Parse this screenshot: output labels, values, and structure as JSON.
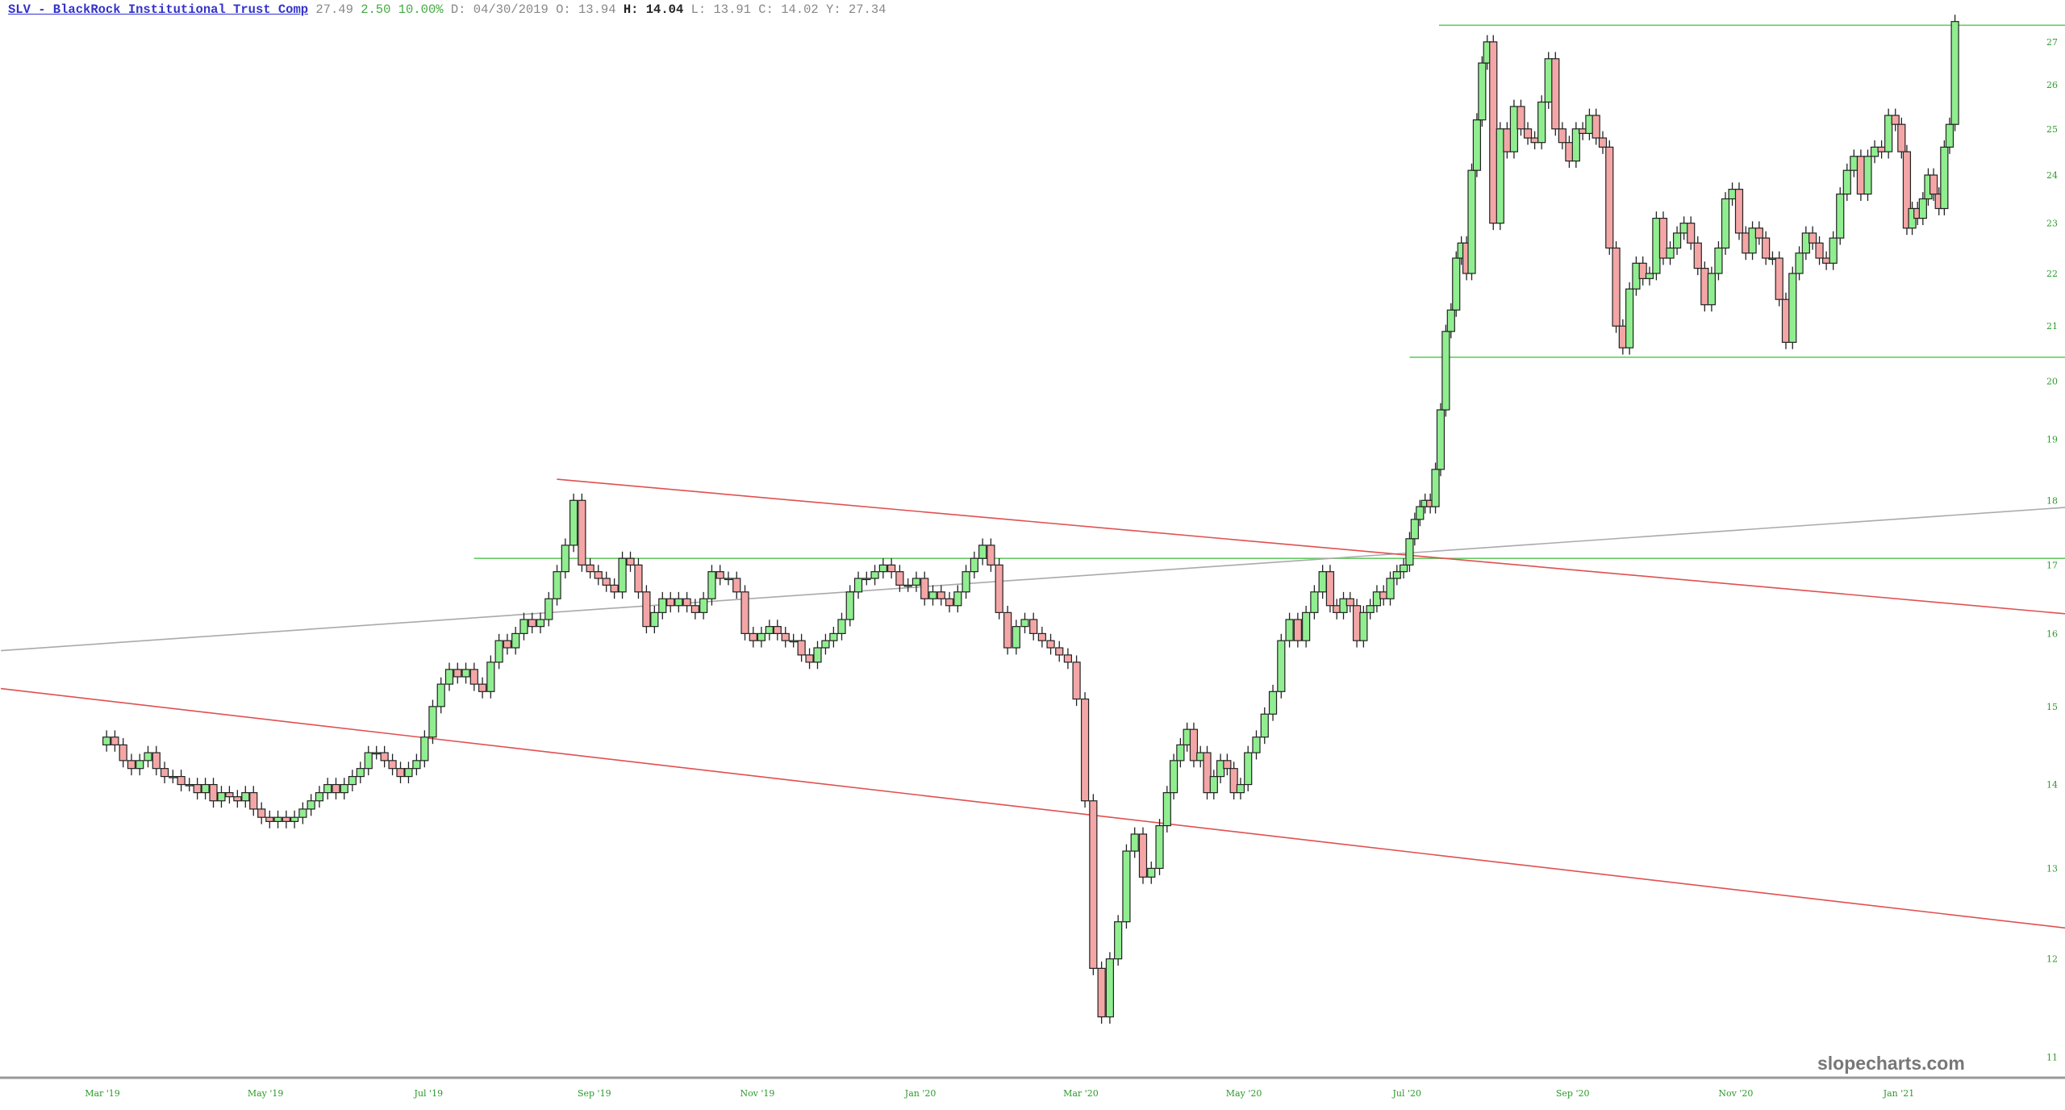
{
  "header": {
    "symbol_link": "SLV - BlackRock Institutional Trust Comp",
    "last": "27.49",
    "change": "2.50",
    "change_pct": "10.00%",
    "date": "D: 04/30/2019",
    "open": "O: 13.94",
    "high": "H: 14.04",
    "low": "L: 13.91",
    "close": "C: 14.02",
    "y_value": "Y: 27.34"
  },
  "watermark": "slopecharts.com",
  "colors": {
    "up": "#90ee90",
    "down": "#f4a6a6",
    "outline": "#222222",
    "axis_text": "#2a9a2a",
    "support_line": "#66cc66",
    "channel_line": "#e05050",
    "trend_line": "#aaaaaa"
  },
  "chart_data": {
    "type": "candlestick",
    "y_scale": "log",
    "ylim": [
      10.9,
      27.6
    ],
    "y_ticks": [
      "11",
      "12",
      "13",
      "14",
      "15",
      "16",
      "17",
      "18",
      "19",
      "20",
      "21",
      "22",
      "23",
      "24",
      "25",
      "26",
      "27"
    ],
    "x_ticks": [
      {
        "label": "Mar '19",
        "date": "2019-03-01"
      },
      {
        "label": "May '19",
        "date": "2019-05-01"
      },
      {
        "label": "Jul '19",
        "date": "2019-07-01"
      },
      {
        "label": "Sep '19",
        "date": "2019-09-01"
      },
      {
        "label": "Nov '19",
        "date": "2019-11-01"
      },
      {
        "label": "Jan '20",
        "date": "2020-01-01"
      },
      {
        "label": "Mar '20",
        "date": "2020-03-01"
      },
      {
        "label": "May '20",
        "date": "2020-05-01"
      },
      {
        "label": "Jul '20",
        "date": "2020-07-01"
      },
      {
        "label": "Sep '20",
        "date": "2020-09-01"
      },
      {
        "label": "Nov '20",
        "date": "2020-11-01"
      },
      {
        "label": "Jan '21",
        "date": "2021-01-01"
      }
    ],
    "first_open": 14.5,
    "monthly_closes": [
      {
        "month": "2019-03",
        "closes": [
          14.6,
          14.5,
          14.3,
          14.2,
          14.3,
          14.4,
          14.2,
          14.1,
          14.1,
          14.0
        ]
      },
      {
        "month": "2019-04",
        "closes": [
          14.0,
          13.9,
          14.0,
          13.8,
          13.9,
          13.85,
          13.8,
          13.9,
          13.7,
          13.6
        ]
      },
      {
        "month": "2019-05",
        "closes": [
          13.55,
          13.6,
          13.55,
          13.6,
          13.7,
          13.8,
          13.9,
          14.0,
          13.9,
          14.0
        ]
      },
      {
        "month": "2019-06",
        "closes": [
          14.1,
          14.2,
          14.4,
          14.4,
          14.3,
          14.2,
          14.1,
          14.2,
          14.3,
          14.6
        ]
      },
      {
        "month": "2019-07",
        "closes": [
          15.0,
          15.3,
          15.5,
          15.4,
          15.5,
          15.3,
          15.2,
          15.6,
          15.9,
          15.8
        ]
      },
      {
        "month": "2019-08",
        "closes": [
          16.0,
          16.2,
          16.1,
          16.2,
          16.5,
          16.9,
          17.3,
          18.0,
          17.0,
          16.9
        ]
      },
      {
        "month": "2019-09",
        "closes": [
          16.8,
          16.7,
          16.6,
          17.1,
          17.0,
          16.6,
          16.1,
          16.3,
          16.5,
          16.4
        ]
      },
      {
        "month": "2019-10",
        "closes": [
          16.5,
          16.4,
          16.3,
          16.5,
          16.9,
          16.8,
          16.8,
          16.6,
          16.0,
          15.9
        ]
      },
      {
        "month": "2019-11",
        "closes": [
          16.0,
          16.1,
          16.0,
          15.9,
          15.9,
          15.7,
          15.6,
          15.8,
          15.9,
          16.0
        ]
      },
      {
        "month": "2019-12",
        "closes": [
          16.2,
          16.6,
          16.8,
          16.8,
          16.9,
          17.0,
          16.9,
          16.7,
          16.7,
          16.8
        ]
      },
      {
        "month": "2020-01",
        "closes": [
          16.5,
          16.6,
          16.5,
          16.4,
          16.6,
          16.9,
          17.1,
          17.3,
          17.0,
          16.3
        ]
      },
      {
        "month": "2020-02",
        "closes": [
          15.8,
          16.1,
          16.2,
          16.0,
          15.9,
          15.8,
          15.7,
          15.6,
          15.1
        ]
      },
      {
        "month": "2020-03",
        "closes": [
          13.8,
          11.9,
          11.4,
          12.0,
          12.4,
          13.2,
          13.4,
          12.9,
          13.0,
          13.5
        ]
      },
      {
        "month": "2020-04",
        "closes": [
          13.9,
          14.3,
          14.5,
          14.7,
          14.3,
          14.4,
          13.9,
          14.1,
          14.3,
          14.2,
          13.9,
          14.0
        ]
      },
      {
        "month": "2020-05",
        "closes": [
          14.4,
          14.6,
          14.9,
          15.2,
          15.9,
          16.2,
          15.9,
          16.3,
          16.6,
          16.9
        ]
      },
      {
        "month": "2020-06",
        "closes": [
          16.4,
          16.3,
          16.5,
          16.4,
          15.9,
          16.3,
          16.4,
          16.6,
          16.5,
          16.8,
          16.9,
          17.0
        ]
      },
      {
        "month": "2020-07",
        "closes": [
          17.4,
          17.7,
          17.9,
          18.0,
          17.9,
          18.5,
          19.5,
          20.9,
          21.3,
          22.3,
          22.6,
          22.0,
          24.1,
          25.2,
          26.5,
          27.0
        ]
      },
      {
        "month": "2020-08",
        "closes": [
          23.0,
          25.0,
          24.5,
          25.5,
          25.0,
          24.8,
          24.7,
          25.6,
          26.6,
          25.0,
          24.7,
          24.3
        ]
      },
      {
        "month": "2020-09",
        "closes": [
          25.0,
          24.9,
          25.3,
          24.8,
          24.6,
          22.5,
          21.0,
          20.6,
          21.7,
          22.2,
          21.9,
          22.0
        ]
      },
      {
        "month": "2020-10",
        "closes": [
          23.1,
          22.3,
          22.5,
          22.8,
          23.0,
          22.6,
          22.1,
          21.4,
          22.0,
          22.5,
          23.5,
          23.7
        ]
      },
      {
        "month": "2020-11",
        "closes": [
          22.8,
          22.4,
          22.9,
          22.7,
          22.3,
          22.3,
          21.5,
          20.7,
          22.0,
          22.4,
          22.8,
          22.6
        ]
      },
      {
        "month": "2020-12",
        "closes": [
          22.3,
          22.2,
          22.7,
          23.6,
          24.1,
          24.4,
          23.6,
          24.4,
          24.6,
          24.5,
          25.3,
          25.1
        ]
      },
      {
        "month": "2021-01",
        "closes": [
          24.5,
          22.9,
          23.3,
          23.1,
          23.5,
          24.0,
          23.6,
          23.3,
          24.6,
          25.1,
          27.49
        ]
      }
    ],
    "drawn_lines": [
      {
        "kind": "horizontal",
        "color": "support",
        "from": "2020-07-13",
        "price": 27.4
      },
      {
        "kind": "horizontal",
        "color": "support",
        "from": "2020-07-02",
        "price": 20.43
      },
      {
        "kind": "horizontal",
        "color": "support",
        "from": "2019-07-18",
        "price": 17.1
      },
      {
        "kind": "trend",
        "color": "trend",
        "from": [
          "2019-01-22",
          15.76
        ],
        "to": [
          "2021-03-05",
          17.89
        ]
      },
      {
        "kind": "trend",
        "color": "channel",
        "from": [
          "2019-08-18",
          18.34
        ],
        "to": [
          "2021-03-05",
          16.28
        ]
      },
      {
        "kind": "trend",
        "color": "channel",
        "from": [
          "2019-01-22",
          15.24
        ],
        "to": [
          "2021-03-05",
          12.33
        ]
      }
    ]
  }
}
